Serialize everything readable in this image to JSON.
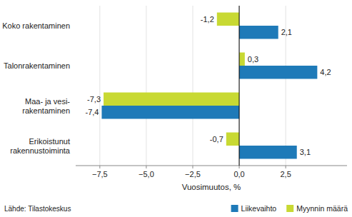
{
  "chart_data": {
    "type": "bar",
    "orientation": "horizontal",
    "categories": [
      "Koko rakentaminen",
      "Talonrakentaminen",
      "Maa- ja vesi-\nrakentaminen",
      "Erikoistunut\nrakennustoiminta"
    ],
    "series": [
      {
        "name": "Liikevaihto",
        "color": "#1e7ab8",
        "values": [
          2.1,
          4.2,
          -7.4,
          3.1
        ],
        "value_labels": [
          "2,1",
          "4,2",
          "-7,4",
          "3,1"
        ]
      },
      {
        "name": "Myynnin määrä",
        "color": "#c8d933",
        "values": [
          -1.2,
          0.3,
          -7.3,
          -0.7
        ],
        "value_labels": [
          "-1,2",
          "0,3",
          "-7,3",
          "-0,7"
        ]
      }
    ],
    "xlabel": "Vuosimuutos, %",
    "xlim": [
      -8.8,
      5.8
    ],
    "xticks": [
      {
        "value": -7.5,
        "label": "−7,5"
      },
      {
        "value": -5.0,
        "label": "−5,0"
      },
      {
        "value": -2.5,
        "label": "−2,5"
      },
      {
        "value": 0.0,
        "label": "0,0"
      },
      {
        "value": 2.5,
        "label": "2,5"
      }
    ],
    "grid": true,
    "data_labels": true,
    "legend": "lower right",
    "annotations": [
      "Lähde: Tilastokeskus"
    ]
  }
}
